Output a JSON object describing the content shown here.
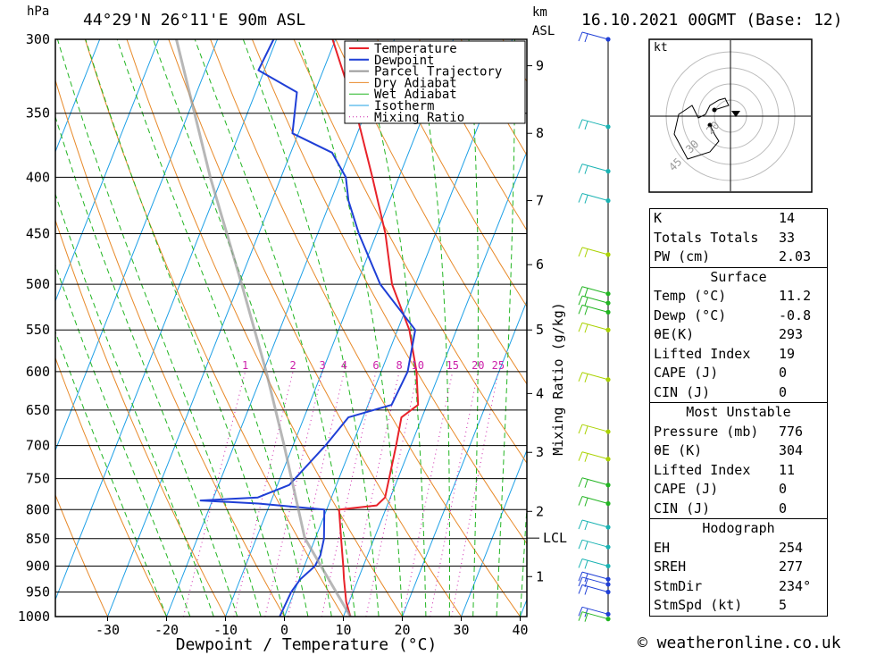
{
  "header": {
    "location": "44°29'N  26°11'E  90m  ASL",
    "datetime": "16.10.2021  00GMT  (Base: 12)",
    "pressure_unit": "hPa",
    "km_unit": "km",
    "asl_unit": "ASL"
  },
  "footer": {
    "copyright": "© weatheronline.co.uk"
  },
  "chart_data": [
    {
      "type": "line",
      "subtype": "skew-T log-P sounding diagram",
      "xlabel": "Dewpoint / Temperature (°C)",
      "ylabel_left": "hPa",
      "ylabel_right_mixing": "Mixing Ratio (g/kg)",
      "x_ticks": [
        -30,
        -20,
        -10,
        0,
        10,
        20,
        30,
        40
      ],
      "pressure_levels": [
        300,
        350,
        400,
        450,
        500,
        550,
        600,
        650,
        700,
        750,
        800,
        850,
        900,
        950,
        1000
      ],
      "height_km_labels": [
        {
          "km": "1",
          "p": 920
        },
        {
          "km": "2",
          "p": 803
        },
        {
          "km": "3",
          "p": 710
        },
        {
          "km": "4",
          "p": 628
        },
        {
          "km": "5",
          "p": 550
        },
        {
          "km": "6",
          "p": 480
        },
        {
          "km": "7",
          "p": 420
        },
        {
          "km": "8",
          "p": 365
        },
        {
          "km": "9",
          "p": 317
        }
      ],
      "lcl": {
        "label": "LCL",
        "p": 849
      },
      "mixing_ratio_labels": [
        "1",
        "2",
        "3",
        "4",
        "6",
        "8",
        "10",
        "15",
        "20",
        "25"
      ],
      "legend": [
        "Temperature",
        "Dewpoint",
        "Parcel Trajectory",
        "Dry Adiabat",
        "Wet Adiabat",
        "Isotherm",
        "Mixing Ratio"
      ],
      "legend_position": "top-right of plot",
      "colors": {
        "temperature": "#e8222a",
        "dewpoint": "#1f3fd6",
        "parcel": "#999999",
        "dry_adiabat": "#e88a2a",
        "wet_adiabat": "#22b522",
        "isotherm": "#1ea0e6",
        "mixing_ratio": "#cc22aa"
      },
      "series": [
        {
          "name": "Temperature",
          "points": [
            {
              "p": 1000,
              "t": 11.2
            },
            {
              "p": 970,
              "t": 9.5
            },
            {
              "p": 925,
              "t": 7.6
            },
            {
              "p": 900,
              "t": 6.6
            },
            {
              "p": 850,
              "t": 4.4
            },
            {
              "p": 800,
              "t": 2.1
            },
            {
              "p": 793,
              "t": 8.2
            },
            {
              "p": 780,
              "t": 9.1
            },
            {
              "p": 700,
              "t": 7.5
            },
            {
              "p": 660,
              "t": 6.5
            },
            {
              "p": 643,
              "t": 8.5
            },
            {
              "p": 600,
              "t": 6.0
            },
            {
              "p": 550,
              "t": 2.0
            },
            {
              "p": 500,
              "t": -4.0
            },
            {
              "p": 450,
              "t": -8.5
            },
            {
              "p": 400,
              "t": -14.5
            },
            {
              "p": 350,
              "t": -21.5
            },
            {
              "p": 300,
              "t": -30.5
            }
          ]
        },
        {
          "name": "Dewpoint",
          "points": [
            {
              "p": 1000,
              "t": -0.8
            },
            {
              "p": 950,
              "t": -0.5
            },
            {
              "p": 925,
              "t": 0.2
            },
            {
              "p": 900,
              "t": 1.8
            },
            {
              "p": 880,
              "t": 2.0
            },
            {
              "p": 850,
              "t": 1.5
            },
            {
              "p": 800,
              "t": -0.4
            },
            {
              "p": 790,
              "t": -12.0
            },
            {
              "p": 785,
              "t": -22.0
            },
            {
              "p": 780,
              "t": -12.5
            },
            {
              "p": 760,
              "t": -8.0
            },
            {
              "p": 700,
              "t": -4.5
            },
            {
              "p": 660,
              "t": -2.5
            },
            {
              "p": 643,
              "t": 4.0
            },
            {
              "p": 600,
              "t": 4.5
            },
            {
              "p": 550,
              "t": 3.0
            },
            {
              "p": 500,
              "t": -6.0
            },
            {
              "p": 450,
              "t": -13.0
            },
            {
              "p": 420,
              "t": -17.0
            },
            {
              "p": 400,
              "t": -19.0
            },
            {
              "p": 380,
              "t": -23.0
            },
            {
              "p": 365,
              "t": -31.0
            },
            {
              "p": 335,
              "t": -33.0
            },
            {
              "p": 320,
              "t": -41.0
            },
            {
              "p": 300,
              "t": -40.5
            }
          ]
        },
        {
          "name": "Parcel Trajectory",
          "points": [
            {
              "p": 1000,
              "t": 11.2
            },
            {
              "p": 849,
              "t": -1.8
            },
            {
              "p": 700,
              "t": -11.5
            },
            {
              "p": 600,
              "t": -19.5
            },
            {
              "p": 500,
              "t": -29.5
            },
            {
              "p": 400,
              "t": -42.0
            },
            {
              "p": 300,
              "t": -57.0
            }
          ]
        }
      ]
    },
    {
      "type": "scatter",
      "subtype": "hodograph",
      "unit_label": "kt",
      "ring_labels": [
        "20",
        "30",
        "45"
      ]
    }
  ],
  "winds": {
    "note": "wind barbs on right-hand pole",
    "barbs": [
      {
        "p": 300,
        "color": "#1f3fd6"
      },
      {
        "p": 360,
        "color": "#1ab3b3"
      },
      {
        "p": 395,
        "color": "#1ab3b3"
      },
      {
        "p": 420,
        "color": "#1ab3b3"
      },
      {
        "p": 470,
        "color": "#aad200"
      },
      {
        "p": 510,
        "color": "#22b522"
      },
      {
        "p": 520,
        "color": "#22b522"
      },
      {
        "p": 530,
        "color": "#22b522"
      },
      {
        "p": 550,
        "color": "#aad200"
      },
      {
        "p": 610,
        "color": "#aad200"
      },
      {
        "p": 680,
        "color": "#aad200"
      },
      {
        "p": 720,
        "color": "#aad200"
      },
      {
        "p": 760,
        "color": "#22b522"
      },
      {
        "p": 790,
        "color": "#22b522"
      },
      {
        "p": 830,
        "color": "#1ab3b3"
      },
      {
        "p": 865,
        "color": "#1ab3b3"
      },
      {
        "p": 900,
        "color": "#1ab3b3"
      },
      {
        "p": 925,
        "color": "#1f3fd6"
      },
      {
        "p": 935,
        "color": "#1f3fd6"
      },
      {
        "p": 950,
        "color": "#1f3fd6"
      },
      {
        "p": 995,
        "color": "#1f3fd6"
      },
      {
        "p": 1005,
        "color": "#22b522"
      }
    ]
  },
  "indices": {
    "k": {
      "label": "K",
      "value": "14"
    },
    "tt": {
      "label": "Totals Totals",
      "value": "33"
    },
    "pw": {
      "label": "PW (cm)",
      "value": "2.03"
    }
  },
  "surface": {
    "title": "Surface",
    "temp": {
      "label": "Temp (°C)",
      "value": "11.2"
    },
    "dewp": {
      "label": "Dewp (°C)",
      "value": "-0.8"
    },
    "theta_e": {
      "label": "θE(K)",
      "value": "293"
    },
    "li": {
      "label": "Lifted Index",
      "value": "19"
    },
    "cape": {
      "label": "CAPE (J)",
      "value": "0"
    },
    "cin": {
      "label": "CIN (J)",
      "value": "0"
    }
  },
  "most_unstable": {
    "title": "Most Unstable",
    "pressure": {
      "label": "Pressure (mb)",
      "value": "776"
    },
    "theta_e": {
      "label": "θE (K)",
      "value": "304"
    },
    "li": {
      "label": "Lifted Index",
      "value": "11"
    },
    "cape": {
      "label": "CAPE (J)",
      "value": "0"
    },
    "cin": {
      "label": "CIN (J)",
      "value": "0"
    }
  },
  "hodograph_stats": {
    "title": "Hodograph",
    "eh": {
      "label": "EH",
      "value": "254"
    },
    "sreh": {
      "label": "SREH",
      "value": "277"
    },
    "stmdir": {
      "label": "StmDir",
      "value": "234°"
    },
    "stmspd": {
      "label": "StmSpd (kt)",
      "value": "5"
    }
  }
}
